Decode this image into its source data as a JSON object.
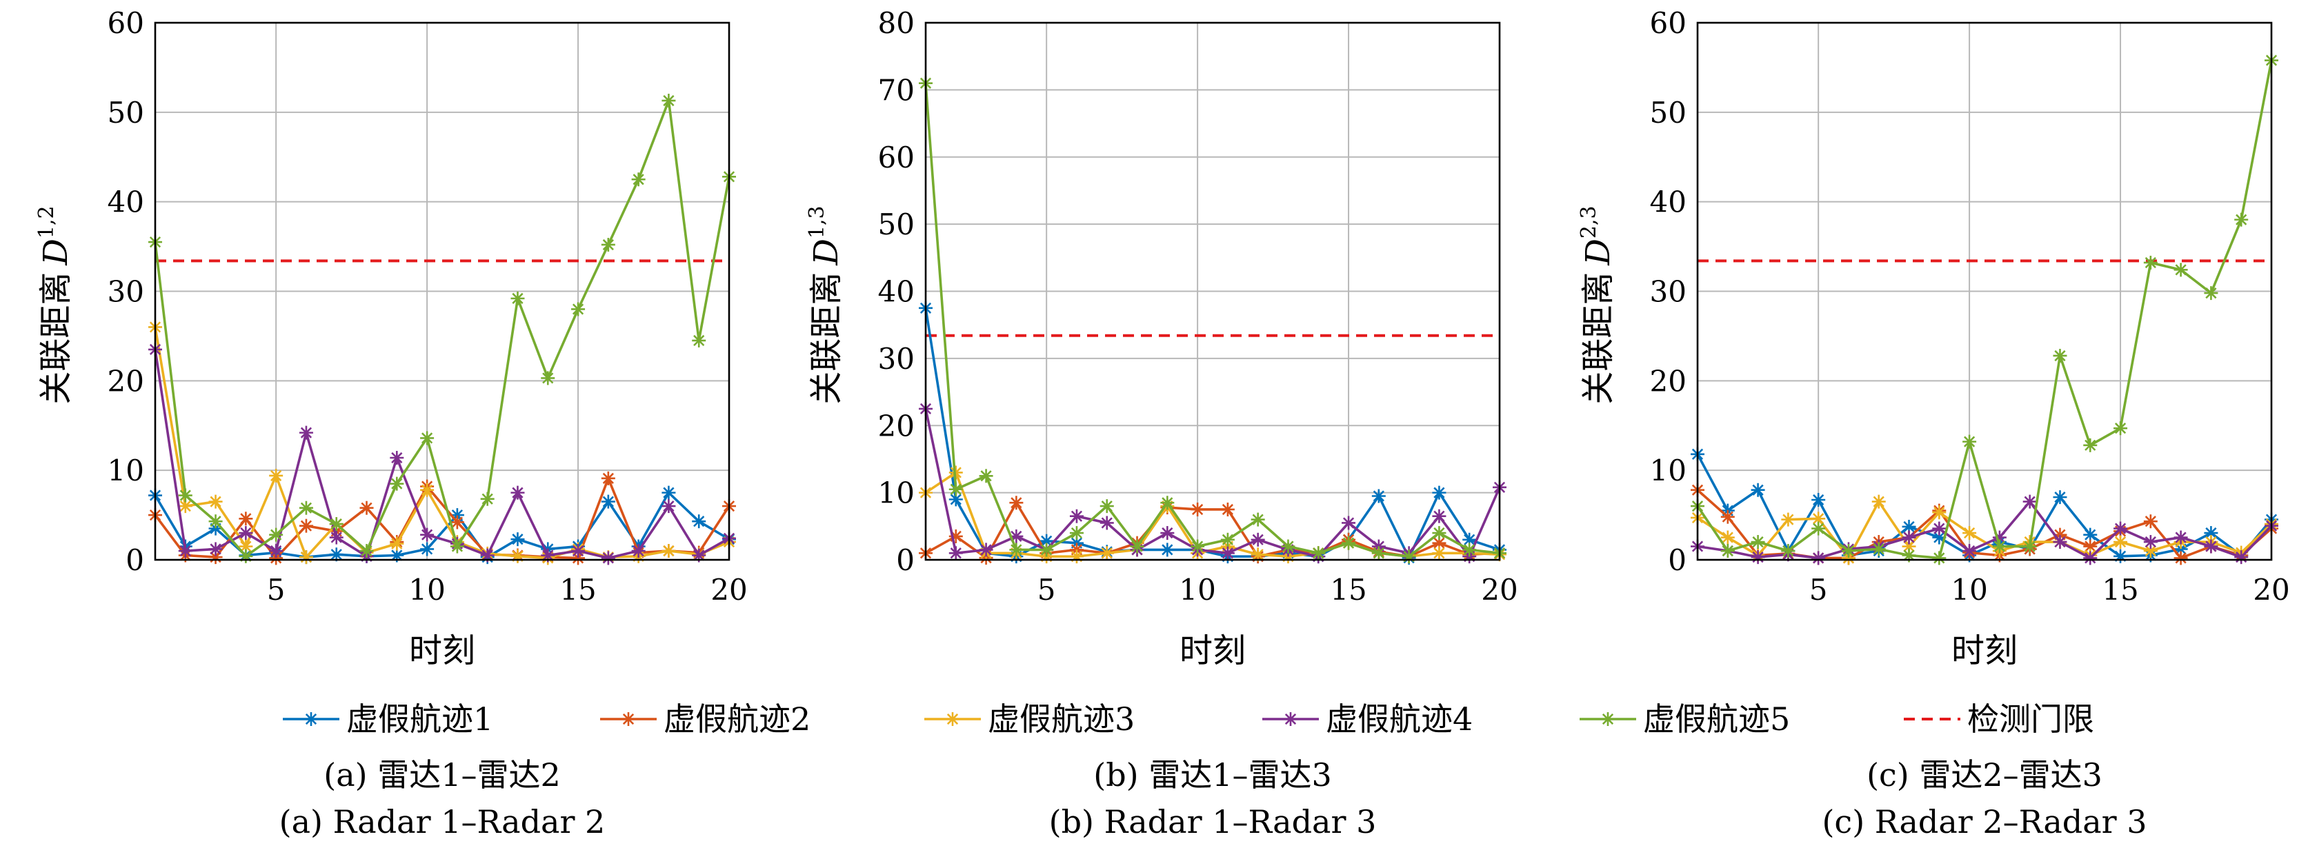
{
  "chart_data": [
    {
      "type": "line",
      "panel": "a",
      "xlabel": "时刻",
      "ylabel": "关联距离",
      "ylabel_symbol": "D",
      "ylabel_sup": "1,2",
      "xlim": [
        1,
        20
      ],
      "ylim": [
        0,
        60
      ],
      "yticks": [
        0,
        10,
        20,
        30,
        40,
        50,
        60
      ],
      "xticks": [
        5,
        10,
        15,
        20
      ],
      "grid": true,
      "x": [
        1,
        2,
        3,
        4,
        5,
        6,
        7,
        8,
        9,
        10,
        11,
        12,
        13,
        14,
        15,
        16,
        17,
        18,
        19,
        20
      ],
      "series": [
        {
          "name": "虚假航迹1",
          "color": "#0072BD",
          "values": [
            7.2,
            1.5,
            3.5,
            0.5,
            0.8,
            0.3,
            0.6,
            0.4,
            0.5,
            1.2,
            5.0,
            0.3,
            2.3,
            1.2,
            1.5,
            6.5,
            1.5,
            7.5,
            4.3,
            2.3
          ]
        },
        {
          "name": "虚假航迹2",
          "color": "#D95319",
          "values": [
            5.0,
            0.5,
            0.3,
            4.6,
            0.2,
            3.8,
            3.2,
            5.8,
            2.0,
            8.2,
            4.2,
            0.6,
            0.5,
            0.3,
            0.2,
            9.1,
            0.8,
            1.0,
            0.8,
            6.0
          ]
        },
        {
          "name": "虚假航迹3",
          "color": "#EDB120",
          "values": [
            26.0,
            6.0,
            6.5,
            1.5,
            9.4,
            0.3,
            4.0,
            0.8,
            1.8,
            7.8,
            2.0,
            0.7,
            0.4,
            0.2,
            1.2,
            0.3,
            0.4,
            1.0,
            0.6,
            2.0
          ]
        },
        {
          "name": "虚假航迹4",
          "color": "#7E2F8E",
          "values": [
            23.5,
            1.0,
            1.2,
            3.0,
            1.0,
            14.2,
            2.5,
            0.4,
            11.4,
            2.8,
            1.8,
            0.5,
            7.5,
            0.5,
            1.0,
            0.2,
            1.0,
            6.0,
            0.5,
            2.4
          ]
        },
        {
          "name": "虚假航迹5",
          "color": "#77AC30",
          "values": [
            35.5,
            7.2,
            4.3,
            0.4,
            2.8,
            5.8,
            4.0,
            1.0,
            8.5,
            13.6,
            1.5,
            6.8,
            29.2,
            20.3,
            28.0,
            35.2,
            42.5,
            51.3,
            24.5,
            42.8
          ]
        }
      ],
      "threshold": {
        "name": "检测门限",
        "color": "#E41A1C",
        "value": 33.4
      },
      "caption_cn": "(a) 雷达1–雷达2",
      "caption_en": "(a) Radar 1–Radar 2"
    },
    {
      "type": "line",
      "panel": "b",
      "xlabel": "时刻",
      "ylabel": "关联距离",
      "ylabel_symbol": "D",
      "ylabel_sup": "1,3",
      "xlim": [
        1,
        20
      ],
      "ylim": [
        0,
        80
      ],
      "yticks": [
        0,
        10,
        20,
        30,
        40,
        50,
        60,
        70,
        80
      ],
      "xticks": [
        5,
        10,
        15,
        20
      ],
      "grid": true,
      "x": [
        1,
        2,
        3,
        4,
        5,
        6,
        7,
        8,
        9,
        10,
        11,
        12,
        13,
        14,
        15,
        16,
        17,
        18,
        19,
        20
      ],
      "series": [
        {
          "name": "虚假航迹1",
          "color": "#0072BD",
          "values": [
            37.5,
            9.0,
            1.0,
            0.5,
            2.8,
            2.5,
            1.2,
            1.5,
            1.5,
            1.5,
            0.5,
            0.5,
            1.0,
            0.5,
            3.0,
            9.5,
            0.3,
            10.0,
            3.0,
            1.5
          ]
        },
        {
          "name": "虚假航迹2",
          "color": "#D95319",
          "values": [
            1.0,
            3.5,
            0.3,
            8.5,
            1.0,
            1.5,
            1.0,
            2.5,
            7.8,
            7.5,
            7.5,
            0.5,
            1.5,
            1.0,
            3.0,
            1.2,
            0.5,
            2.5,
            0.8,
            1.0
          ]
        },
        {
          "name": "虚假航迹3",
          "color": "#EDB120",
          "values": [
            10.0,
            13.0,
            1.0,
            1.0,
            0.5,
            0.5,
            1.0,
            1.5,
            8.0,
            1.0,
            2.0,
            0.8,
            0.5,
            1.0,
            2.5,
            1.0,
            0.5,
            1.0,
            1.0,
            0.8
          ]
        },
        {
          "name": "虚假航迹4",
          "color": "#7E2F8E",
          "values": [
            22.5,
            1.0,
            1.5,
            3.5,
            1.5,
            6.5,
            5.5,
            1.5,
            4.0,
            1.5,
            1.0,
            3.0,
            1.5,
            0.5,
            5.5,
            2.0,
            1.0,
            6.5,
            0.5,
            10.8
          ]
        },
        {
          "name": "虚假航迹5",
          "color": "#77AC30",
          "values": [
            71.0,
            10.5,
            12.5,
            1.5,
            1.5,
            4.0,
            8.0,
            2.0,
            8.5,
            2.0,
            3.0,
            6.0,
            2.0,
            1.0,
            2.5,
            1.0,
            0.5,
            4.0,
            1.5,
            1.0
          ]
        }
      ],
      "threshold": {
        "name": "检测门限",
        "color": "#E41A1C",
        "value": 33.4
      },
      "caption_cn": "(b) 雷达1–雷达3",
      "caption_en": "(b) Radar 1–Radar 3"
    },
    {
      "type": "line",
      "panel": "c",
      "xlabel": "时刻",
      "ylabel": "关联距离",
      "ylabel_symbol": "D",
      "ylabel_sup": "2,3",
      "xlim": [
        1,
        20
      ],
      "ylim": [
        0,
        60
      ],
      "yticks": [
        0,
        10,
        20,
        30,
        40,
        50,
        60
      ],
      "xticks": [
        5,
        10,
        15,
        20
      ],
      "grid": true,
      "x": [
        1,
        2,
        3,
        4,
        5,
        6,
        7,
        8,
        9,
        10,
        11,
        12,
        13,
        14,
        15,
        16,
        17,
        18,
        19,
        20
      ],
      "series": [
        {
          "name": "虚假航迹1",
          "color": "#0072BD",
          "values": [
            11.8,
            5.5,
            7.8,
            1.0,
            6.7,
            0.5,
            1.0,
            3.7,
            2.5,
            0.5,
            2.0,
            1.2,
            7.0,
            2.8,
            0.4,
            0.5,
            1.2,
            3.0,
            0.5,
            4.5
          ]
        },
        {
          "name": "虚假航迹2",
          "color": "#D95319",
          "values": [
            7.8,
            4.8,
            0.5,
            0.7,
            0.2,
            0.2,
            2.0,
            2.5,
            5.5,
            0.8,
            0.5,
            1.2,
            2.8,
            1.5,
            3.2,
            4.3,
            0.2,
            1.5,
            0.5,
            3.5
          ]
        },
        {
          "name": "虚假航迹3",
          "color": "#EDB120",
          "values": [
            4.7,
            2.5,
            0.5,
            4.5,
            4.6,
            0.2,
            6.5,
            1.5,
            5.3,
            3.0,
            1.0,
            2.0,
            2.0,
            0.5,
            2.0,
            1.0,
            2.0,
            2.0,
            0.8,
            4.0
          ]
        },
        {
          "name": "虚假航迹4",
          "color": "#7E2F8E",
          "values": [
            1.5,
            1.0,
            0.3,
            0.6,
            0.2,
            1.2,
            1.5,
            2.5,
            3.5,
            1.0,
            2.5,
            6.5,
            2.0,
            0.2,
            3.5,
            2.0,
            2.5,
            1.5,
            0.3,
            3.8
          ]
        },
        {
          "name": "虚假航迹5",
          "color": "#77AC30",
          "values": [
            6.0,
            1.0,
            2.0,
            1.0,
            3.5,
            1.0,
            1.2,
            0.5,
            0.2,
            13.2,
            1.5,
            1.5,
            22.8,
            12.8,
            14.7,
            33.2,
            32.4,
            29.8,
            38.0,
            55.8
          ]
        }
      ],
      "threshold": {
        "name": "检测门限",
        "color": "#E41A1C",
        "value": 33.4
      },
      "caption_cn": "(c) 雷达2–雷达3",
      "caption_en": "(c) Radar 2–Radar 3"
    }
  ],
  "legend": [
    {
      "label": "虚假航迹1",
      "color": "#0072BD",
      "marker": "star"
    },
    {
      "label": "虚假航迹2",
      "color": "#D95319",
      "marker": "star"
    },
    {
      "label": "虚假航迹3",
      "color": "#EDB120",
      "marker": "star"
    },
    {
      "label": "虚假航迹4",
      "color": "#7E2F8E",
      "marker": "star"
    },
    {
      "label": "虚假航迹5",
      "color": "#77AC30",
      "marker": "star"
    },
    {
      "label": "检测门限",
      "color": "#E41A1C",
      "marker": "dashed"
    }
  ]
}
